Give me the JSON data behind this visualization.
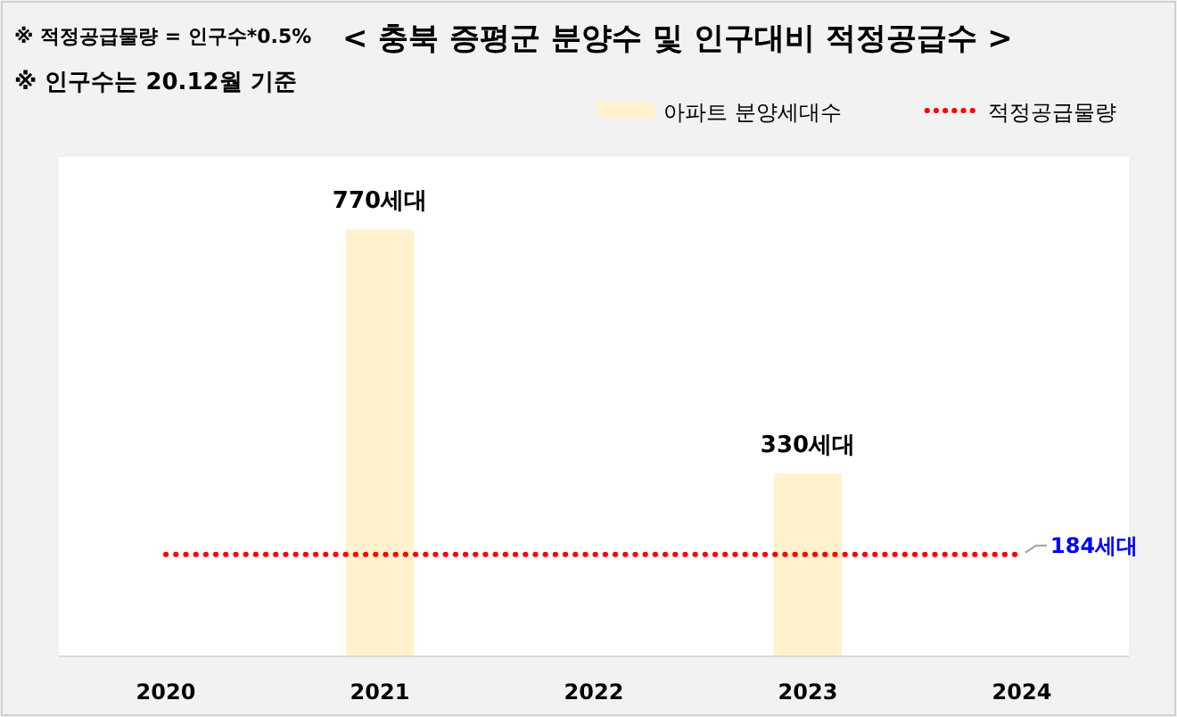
{
  "chart_data": {
    "type": "bar",
    "title": "< 충북 증평군 분양수 및 인구대비 적정공급수 >",
    "annotations": [
      "※ 적정공급물량 = 인구수*0.5%",
      "※ 인구수는 20.12월 기준"
    ],
    "categories": [
      "2020",
      "2021",
      "2022",
      "2023",
      "2024"
    ],
    "series": [
      {
        "name": "아파트 분양세대수",
        "color": "#fff2cc",
        "values": [
          null,
          770,
          null,
          330,
          null
        ],
        "value_labels": [
          null,
          "770세대",
          null,
          "330세대",
          null
        ]
      },
      {
        "name": "적정공급물량",
        "type": "line",
        "line_style": "dotted",
        "color": "#ff0000",
        "values": [
          184,
          184,
          184,
          184,
          184
        ],
        "value_labels": [
          null,
          null,
          null,
          null,
          "184세대"
        ]
      }
    ],
    "legend": "top right"
  }
}
